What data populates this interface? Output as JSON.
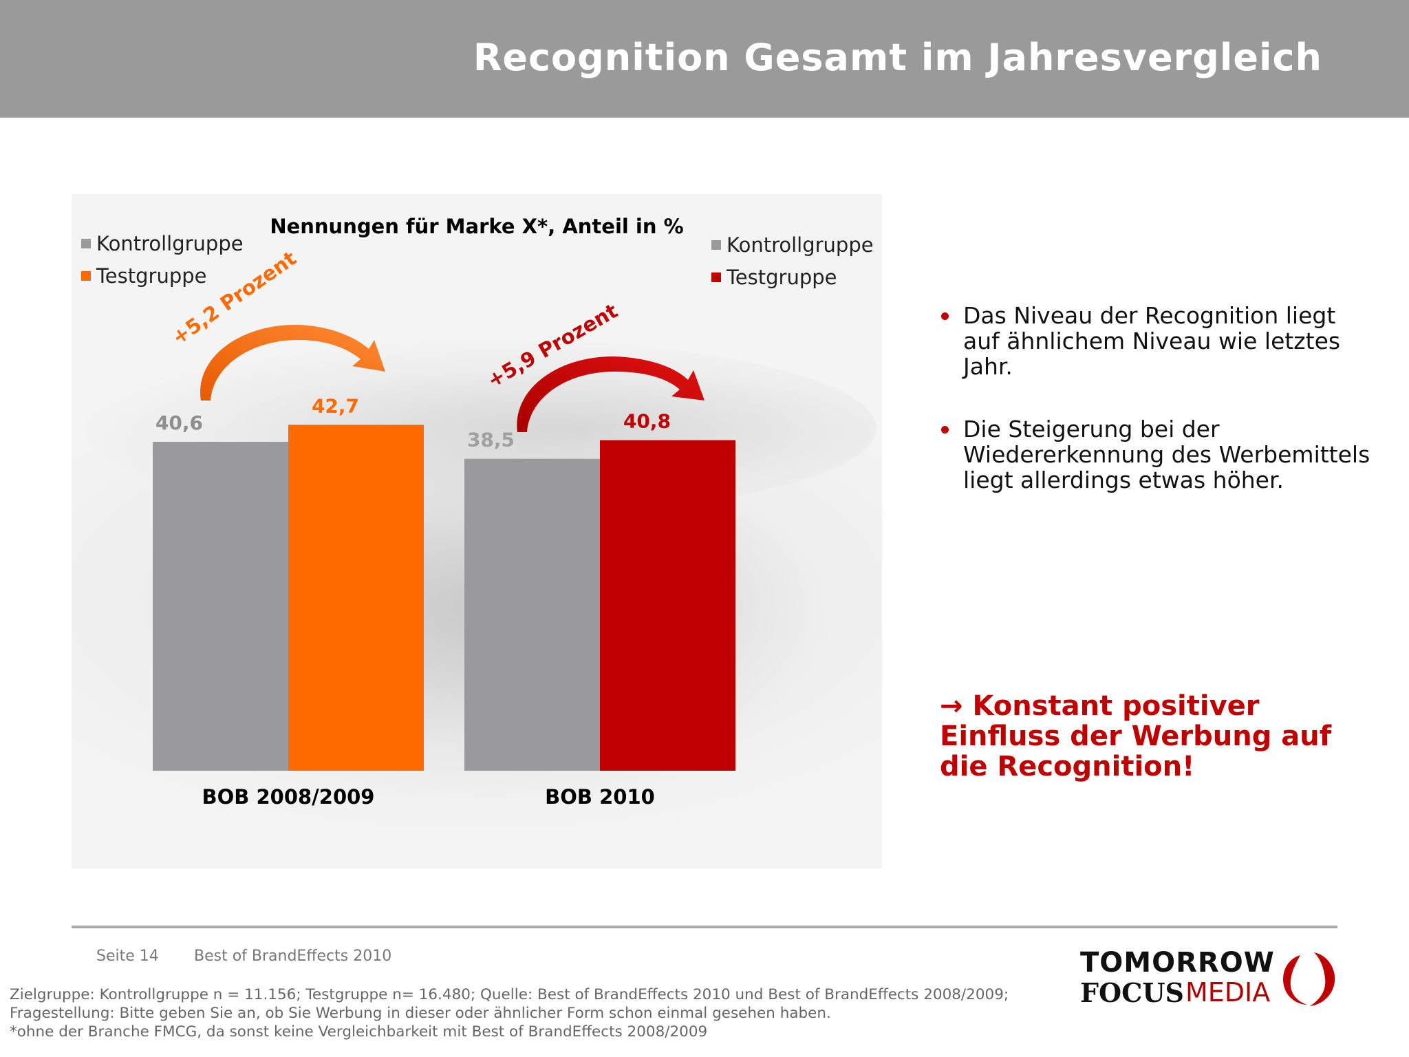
{
  "header": {
    "title": "Recognition Gesamt im Jahresvergleich"
  },
  "colors": {
    "kontroll": "#9a9a9c",
    "test_2009": "#ff6a00",
    "test_2010": "#c00000",
    "accent": "#c00000"
  },
  "chart_data": {
    "type": "bar",
    "title": "Nennungen für Marke X*, Anteil in %",
    "categories": [
      "BOB 2008/2009",
      "BOB 2010"
    ],
    "series": [
      {
        "name": "Kontrollgruppe",
        "values": [
          40.6,
          38.5
        ]
      },
      {
        "name": "Testgruppe",
        "values": [
          42.7,
          40.8
        ]
      }
    ],
    "value_labels": [
      [
        "40,6",
        "38,5"
      ],
      [
        "42,7",
        "40,8"
      ]
    ],
    "ylim": [
      0,
      50
    ],
    "annotations": [
      "+5,2 Prozent",
      "+5,9 Prozent"
    ],
    "legends": [
      {
        "position": "top-left",
        "items": [
          {
            "name": "Kontrollgruppe",
            "color": "#9a9a9c"
          },
          {
            "name": "Testgruppe",
            "color": "#ff6a00"
          }
        ]
      },
      {
        "position": "top-right",
        "items": [
          {
            "name": "Kontrollgruppe",
            "color": "#9a9a9c"
          },
          {
            "name": "Testgruppe",
            "color": "#c00000"
          }
        ]
      }
    ]
  },
  "bullets": [
    "Das Niveau der Recognition liegt auf ähnlichem Niveau wie letztes Jahr.",
    "Die Steigerung bei der Wiedererkennung des Werbemittels liegt allerdings etwas höher."
  ],
  "conclusion": "→ Konstant positiver Einfluss der Werbung auf die Recognition!",
  "footer": {
    "page": "Seite 14",
    "name": "Best of BrandEffects 2010",
    "notes": [
      "Zielgruppe: Kontrollgruppe n = 11.156; Testgruppe n= 16.480; Quelle: Best of BrandEffects 2010 und Best of BrandEffects 2008/2009; Fragestellung: Bitte geben Sie an, ob Sie Werbung in dieser oder ähnlicher Form schon einmal gesehen haben.",
      "*ohne der Branche FMCG, da sonst keine Vergleichbarkeit mit Best of BrandEffects 2008/2009"
    ]
  },
  "logo": {
    "line1": "TOMORROW",
    "line2a": "FOCUS",
    "line2b": "MEDIA"
  }
}
